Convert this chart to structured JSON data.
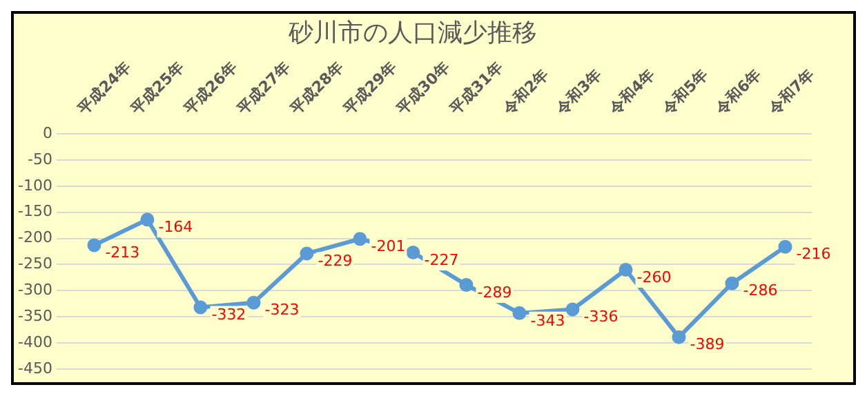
{
  "chart_data": {
    "type": "line",
    "title": "砂川市の人口減少推移",
    "categories": [
      "平成24年",
      "平成25年",
      "平成26年",
      "平成27年",
      "平成28年",
      "平成29年",
      "平成30年",
      "平成31年",
      "令和2年",
      "令和3年",
      "令和4年",
      "令和5年",
      "令和6年",
      "令和7年"
    ],
    "series": [
      {
        "color": "#5b9bd5",
        "values": [
          -213,
          -164,
          -332,
          -323,
          -229,
          -201,
          -227,
          -289,
          -343,
          -336,
          -260,
          -389,
          -286,
          -216
        ]
      }
    ],
    "ylim": [
      -450,
      0
    ],
    "yticks": [
      0,
      -50,
      -100,
      -150,
      -200,
      -250,
      -300,
      -350,
      -400,
      -450
    ],
    "grid": "y",
    "legend": false,
    "marker": "circle",
    "line_style": "solid",
    "data_labels": true
  }
}
